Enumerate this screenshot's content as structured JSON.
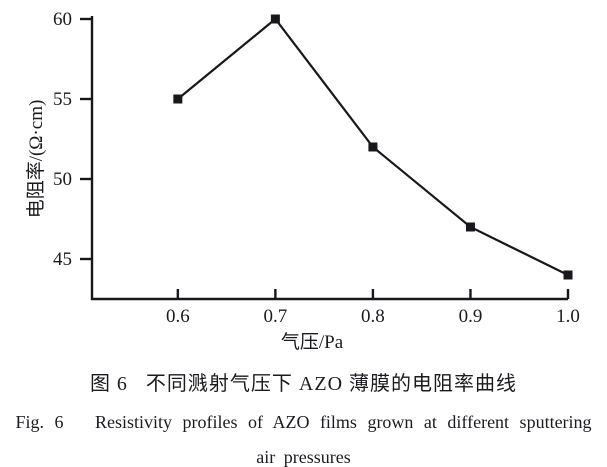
{
  "figure": {
    "caption_zh": "图 6   不同溅射气压下 AZO 薄膜的电阻率曲线",
    "caption_en_line1": "Fig. 6   Resistivity profiles of AZO films grown at different sputtering",
    "caption_en_line2": "air pressures"
  },
  "chart_data": {
    "type": "line",
    "title": "",
    "xlabel": "气压/Pa",
    "ylabel": "电阻率/(Ω·cm)",
    "x": [
      0.6,
      0.7,
      0.8,
      0.9,
      1.0
    ],
    "values": [
      55,
      60,
      52,
      47,
      44
    ],
    "x_tick_labels": [
      "0.6",
      "0.7",
      "0.8",
      "0.9",
      "1.0"
    ],
    "y_ticks": [
      45,
      50,
      55,
      60
    ],
    "xlim": [
      0.512,
      1.0
    ],
    "ylim": [
      42.5,
      60
    ],
    "grid": false,
    "legend": "none",
    "marker": "filled-square",
    "line_color": "#17181c",
    "text_color": "#1a1b1f"
  }
}
